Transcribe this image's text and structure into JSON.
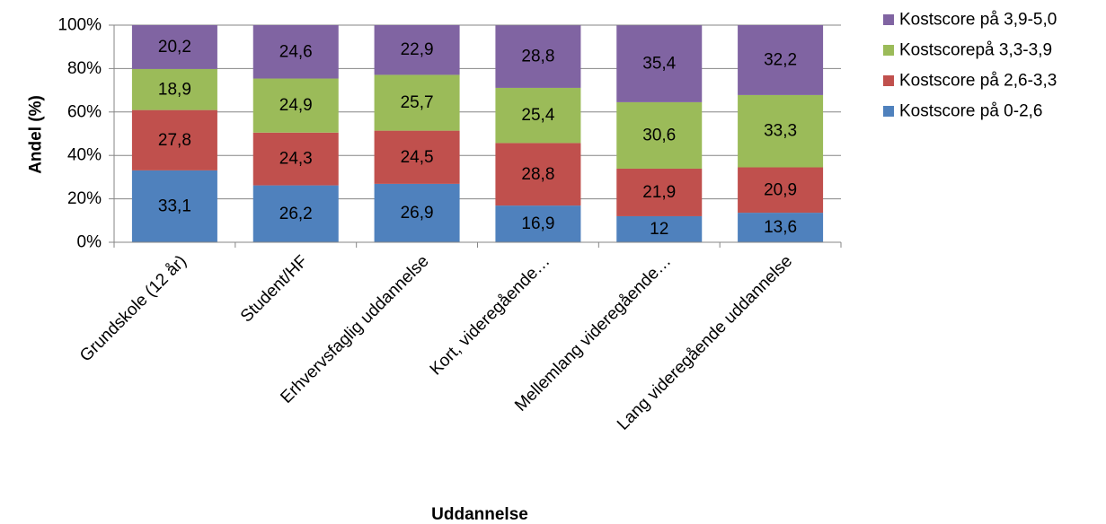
{
  "chart_data": {
    "type": "bar",
    "stacked": true,
    "xlabel": "Uddannelse",
    "ylabel": "Andel (%)",
    "ylim": [
      0,
      100
    ],
    "yticks": [
      "0%",
      "20%",
      "40%",
      "60%",
      "80%",
      "100%"
    ],
    "grid": true,
    "legend_position": "right",
    "categories": [
      "Grundskole (12 år)",
      "Student/HF",
      "Erhvervsfaglig uddannelse",
      "Kort, videregående…",
      "Mellemlang videregående…",
      "Lang videregående uddannelse"
    ],
    "series": [
      {
        "name": "Kostscore på 0-2,6",
        "color": "#4F81BD",
        "values": [
          33.1,
          26.2,
          26.9,
          16.9,
          12,
          13.6
        ],
        "labels": [
          "33,1",
          "26,2",
          "26,9",
          "16,9",
          "12",
          "13,6"
        ]
      },
      {
        "name": "Kostscore på 2,6-3,3",
        "color": "#C0504D",
        "values": [
          27.8,
          24.3,
          24.5,
          28.8,
          21.9,
          20.9
        ],
        "labels": [
          "27,8",
          "24,3",
          "24,5",
          "28,8",
          "21,9",
          "20,9"
        ]
      },
      {
        "name": "Kostscorepå 3,3-3,9",
        "color": "#9BBB59",
        "values": [
          18.9,
          24.9,
          25.7,
          25.4,
          30.6,
          33.3
        ],
        "labels": [
          "18,9",
          "24,9",
          "25,7",
          "25,4",
          "30,6",
          "33,3"
        ]
      },
      {
        "name": "Kostscore på 3,9-5,0",
        "color": "#8064A2",
        "values": [
          20.2,
          24.6,
          22.9,
          28.8,
          35.4,
          32.2
        ],
        "labels": [
          "20,2",
          "24,6",
          "22,9",
          "28,8",
          "35,4",
          "32,2"
        ]
      }
    ]
  }
}
